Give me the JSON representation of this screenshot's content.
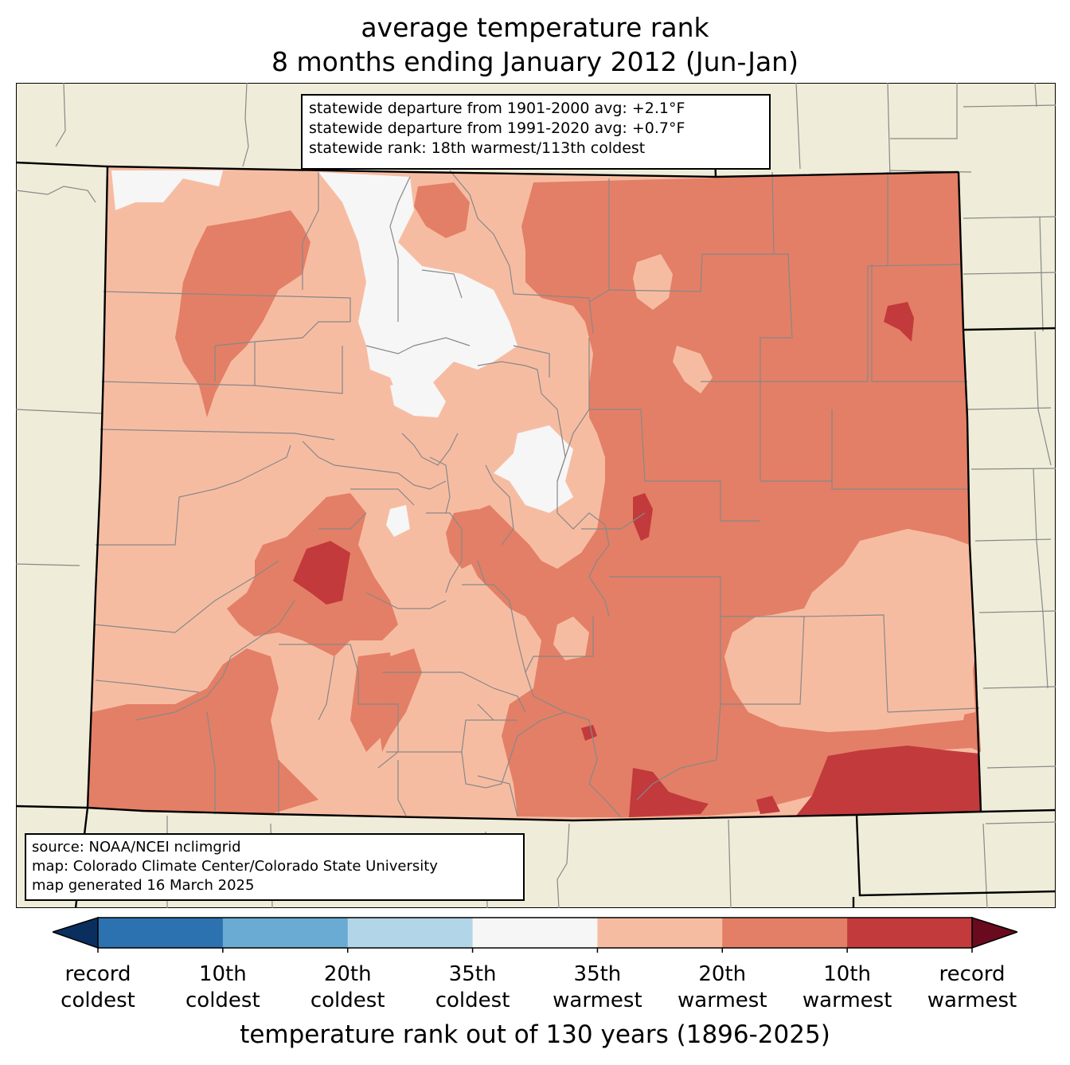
{
  "title_line1": "average temperature rank",
  "title_line2": "8 months ending January 2012 (Jun-Jan)",
  "stats": {
    "line1": "statewide departure from 1901-2000 avg: +2.1°F",
    "line2": "statewide departure from 1991-2020 avg: +0.7°F",
    "line3": "statewide rank: 18th warmest/113th coldest"
  },
  "source": {
    "line1": "source: NOAA/NCEI nclimgrid",
    "line2": "map: Colorado Climate Center/Colorado State University",
    "line3": "map generated 16 March 2025"
  },
  "legend": {
    "title": "temperature rank out of 130 years (1896-2025)",
    "labels": [
      {
        "top": "record",
        "bottom": "coldest"
      },
      {
        "top": "10th",
        "bottom": "coldest"
      },
      {
        "top": "20th",
        "bottom": "coldest"
      },
      {
        "top": "35th",
        "bottom": "coldest"
      },
      {
        "top": "35th",
        "bottom": "warmest"
      },
      {
        "top": "20th",
        "bottom": "warmest"
      },
      {
        "top": "10th",
        "bottom": "warmest"
      },
      {
        "top": "record",
        "bottom": "warmest"
      }
    ],
    "colors": [
      "#2c72b1",
      "#69abd2",
      "#b3d5e8",
      "#f6f6f6",
      "#f6bca2",
      "#e37f66",
      "#c23a3c"
    ],
    "under_color": "#0a2f5f",
    "over_color": "#6a0a1f"
  },
  "map_colors": {
    "background": "#efedd9",
    "near_normal": "#f6f6f6",
    "warm_35": "#f6bca2",
    "warm_20": "#e37f66",
    "warm_10": "#c23a3c",
    "county_lines": "#888888",
    "state_lines": "#000000"
  }
}
